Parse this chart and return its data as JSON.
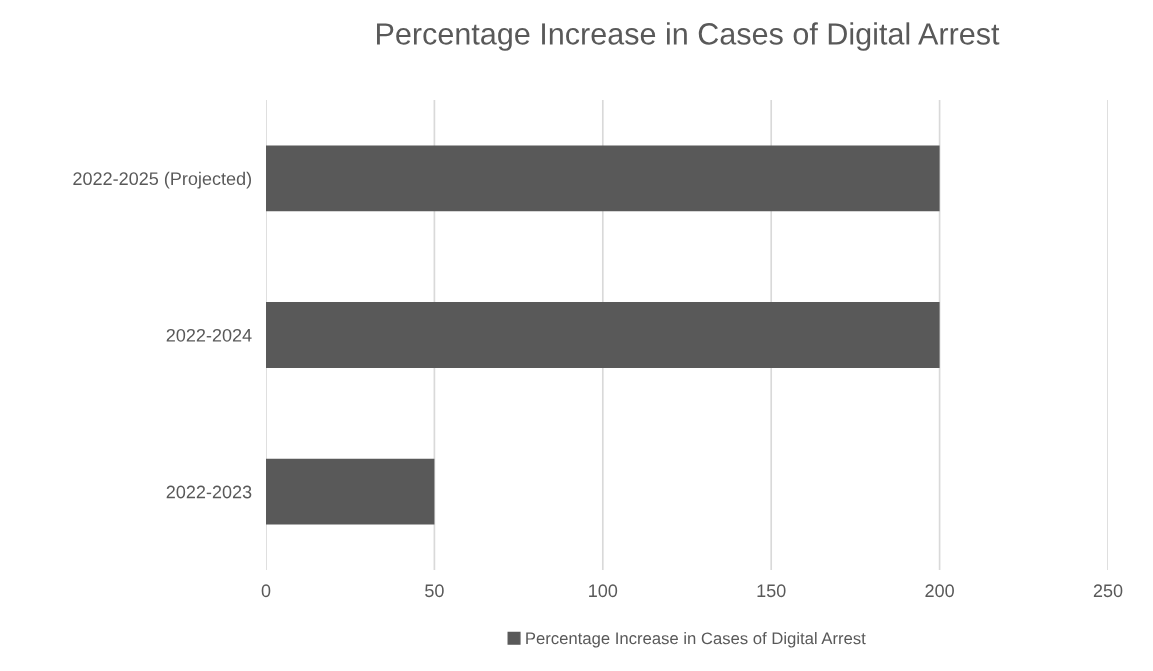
{
  "chart_data": {
    "type": "bar",
    "orientation": "horizontal",
    "title": "Percentage Increase in Cases of Digital Arrest",
    "categories": [
      "2022-2025 (Projected)",
      "2022-2024",
      "2022-2023"
    ],
    "series": [
      {
        "name": "Percentage Increase in Cases of Digital Arrest",
        "color": "#595959",
        "values": [
          200,
          200,
          50
        ]
      }
    ],
    "xlim": [
      0,
      250
    ],
    "xticks": [
      0,
      50,
      100,
      150,
      200,
      250
    ],
    "grid": "x",
    "legend": "bottom"
  }
}
